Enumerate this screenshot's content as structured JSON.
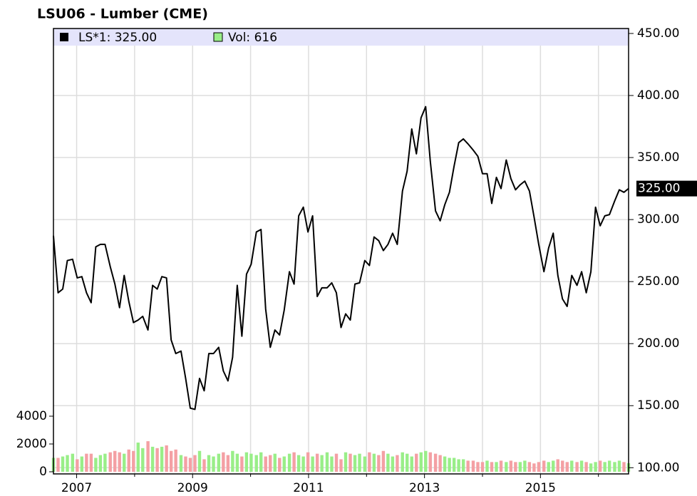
{
  "chart_data": {
    "type": "line",
    "title": "LSU06 - Lumber (CME)",
    "x": [
      2006.6,
      2006.68,
      2006.76,
      2006.84,
      2006.93,
      2007.01,
      2007.09,
      2007.17,
      2007.25,
      2007.33,
      2007.41,
      2007.49,
      2007.58,
      2007.66,
      2007.74,
      2007.82,
      2007.9,
      2007.98,
      2008.06,
      2008.14,
      2008.23,
      2008.31,
      2008.39,
      2008.47,
      2008.55,
      2008.63,
      2008.71,
      2008.8,
      2008.88,
      2008.96,
      2009.04,
      2009.12,
      2009.2,
      2009.28,
      2009.36,
      2009.45,
      2009.53,
      2009.61,
      2009.69,
      2009.77,
      2009.85,
      2009.93,
      2010.01,
      2010.1,
      2010.18,
      2010.26,
      2010.34,
      2010.42,
      2010.5,
      2010.58,
      2010.67,
      2010.75,
      2010.83,
      2010.91,
      2010.99,
      2011.07,
      2011.15,
      2011.23,
      2011.32,
      2011.4,
      2011.48,
      2011.56,
      2011.64,
      2011.72,
      2011.8,
      2011.88,
      2011.97,
      2012.05,
      2012.13,
      2012.21,
      2012.29,
      2012.37,
      2012.45,
      2012.53,
      2012.62,
      2012.7,
      2012.78,
      2012.86,
      2012.94,
      2013.02,
      2013.1,
      2013.19,
      2013.27,
      2013.35,
      2013.43,
      2013.51,
      2013.59,
      2013.67,
      2013.75,
      2013.84,
      2013.92,
      2014.0,
      2014.08,
      2014.16,
      2014.24,
      2014.32,
      2014.41,
      2014.49,
      2014.57,
      2014.65,
      2014.73,
      2014.81,
      2014.89,
      2014.97,
      2015.06,
      2015.14,
      2015.22,
      2015.3,
      2015.38,
      2015.46,
      2015.54,
      2015.63,
      2015.71,
      2015.79,
      2015.87,
      2015.95,
      2016.03,
      2016.11,
      2016.19,
      2016.28,
      2016.36,
      2016.44,
      2016.52
    ],
    "series": [
      {
        "name": "LS*1: 325.00",
        "color": "#000000",
        "values": [
          287,
          241,
          244,
          267,
          268,
          253,
          254,
          241,
          233,
          278,
          280,
          280,
          262,
          248,
          229,
          255,
          234,
          217,
          219,
          222,
          211,
          247,
          244,
          254,
          253,
          203,
          192,
          194,
          172,
          148,
          147,
          172,
          162,
          192,
          192,
          197,
          178,
          170,
          189,
          247,
          206,
          256,
          264,
          290,
          292,
          228,
          197,
          211,
          207,
          227,
          258,
          248,
          303,
          310,
          290,
          303,
          238,
          245,
          245,
          249,
          241,
          213,
          224,
          219,
          248,
          249,
          267,
          263,
          286,
          283,
          275,
          280,
          289,
          280,
          323,
          339,
          373,
          353,
          382,
          391,
          347,
          307,
          299,
          312,
          322,
          343,
          362,
          365,
          361,
          356,
          351,
          337,
          337,
          313,
          334,
          325,
          348,
          333,
          324,
          328,
          331,
          323,
          302,
          280,
          258,
          277,
          289,
          255,
          236,
          230,
          255,
          247,
          258,
          241,
          258,
          310,
          295,
          303,
          304,
          315,
          324,
          322,
          325
        ]
      },
      {
        "name": "Vol: 616",
        "color": "#99ee88",
        "axis": "y2",
        "values": [
          1000,
          1000,
          1100,
          1200,
          1300,
          900,
          1100,
          1300,
          1300,
          1000,
          1200,
          1300,
          1400,
          1500,
          1400,
          1300,
          1600,
          1500,
          2100,
          1700,
          2200,
          1800,
          1700,
          1800,
          1900,
          1500,
          1600,
          1200,
          1100,
          1000,
          1200,
          1500,
          900,
          1200,
          1100,
          1300,
          1400,
          1200,
          1500,
          1300,
          1100,
          1400,
          1300,
          1200,
          1400,
          1100,
          1200,
          1300,
          1000,
          1100,
          1300,
          1400,
          1200,
          1100,
          1400,
          1100,
          1300,
          1200,
          1400,
          1100,
          1300,
          900,
          1400,
          1300,
          1200,
          1300,
          1100,
          1400,
          1300,
          1200,
          1500,
          1300,
          1100,
          1200,
          1400,
          1300,
          1100,
          1300,
          1400,
          1500,
          1400,
          1300,
          1200,
          1100,
          1000,
          1000,
          900,
          900,
          800,
          800,
          700,
          700,
          800,
          700,
          700,
          800,
          700,
          800,
          700,
          700,
          800,
          700,
          600,
          700,
          800,
          700,
          800,
          900,
          800,
          700,
          800,
          700,
          800,
          700,
          600,
          700,
          800,
          700,
          800,
          700,
          800,
          700,
          616
        ]
      }
    ],
    "up_color": "#99ee88",
    "down_color": "#f4a0a4",
    "last_label": "325.00",
    "xlim": [
      2006.6,
      2016.52
    ],
    "xticks": [
      2007,
      2009,
      2011,
      2013,
      2015
    ],
    "xminor": [
      2008,
      2010,
      2012,
      2014,
      2016
    ],
    "ylim": [
      95,
      454
    ],
    "yticks": [
      {
        "value": 100,
        "label": "100.00"
      },
      {
        "value": 150,
        "label": "150.00"
      },
      {
        "value": 200,
        "label": "200.00"
      },
      {
        "value": 250,
        "label": "250.00"
      },
      {
        "value": 300,
        "label": "300.00"
      },
      {
        "value": 350,
        "label": "350.00"
      },
      {
        "value": 400,
        "label": "400.00"
      },
      {
        "value": 450,
        "label": "450.00"
      }
    ],
    "y2lim": [
      0,
      32000
    ],
    "y2ticks": [
      0,
      2000,
      4000
    ],
    "grid": true
  }
}
